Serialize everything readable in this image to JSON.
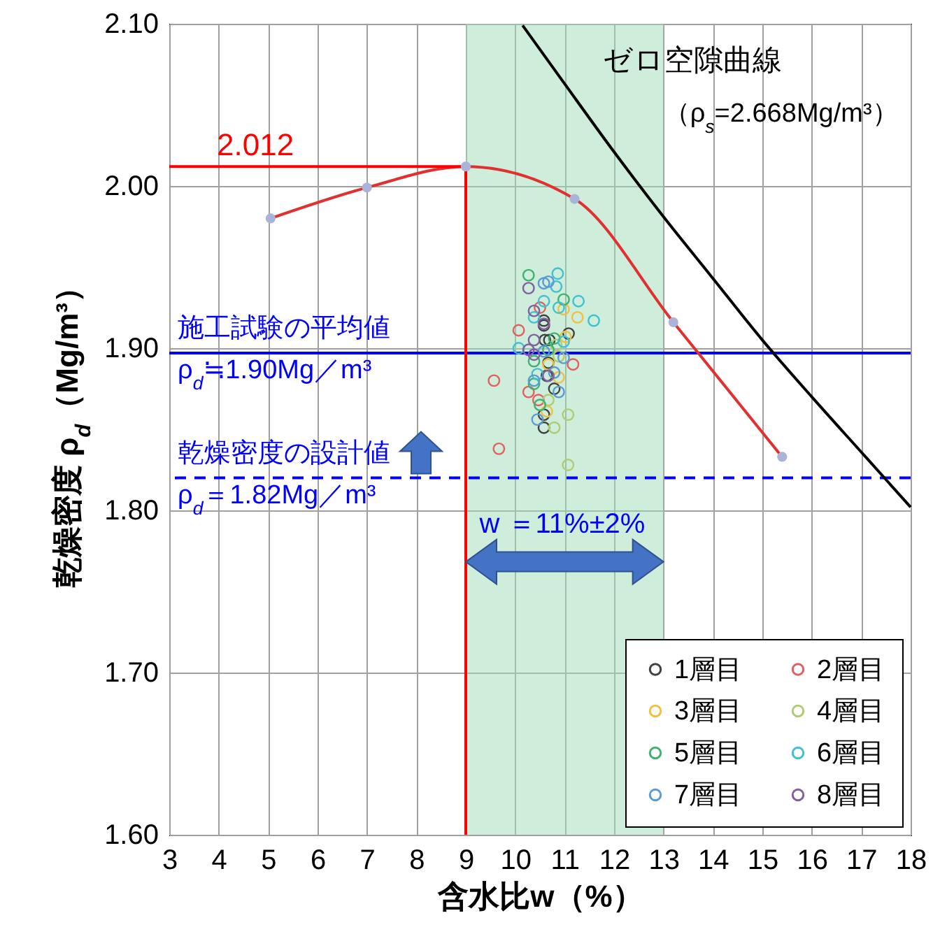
{
  "chart_data": {
    "type": "scatter",
    "xlabel": "含水比w（%）",
    "ylabel": "乾燥密度 ρ$_{d}$（Mg/m³）",
    "xlim": [
      3,
      18
    ],
    "xticks": [
      3,
      4,
      5,
      6,
      7,
      8,
      9,
      10,
      11,
      12,
      13,
      14,
      15,
      16,
      17,
      18
    ],
    "ylim": [
      1.6,
      2.1
    ],
    "yticks": [
      {
        "value": 1.6,
        "label": "1.60"
      },
      {
        "value": 1.7,
        "label": "1.70"
      },
      {
        "value": 1.8,
        "label": "1.80"
      },
      {
        "value": 1.9,
        "label": "1.90"
      },
      {
        "value": 2.0,
        "label": "2.00"
      },
      {
        "value": 2.1,
        "label": "2.10"
      }
    ],
    "grid": true,
    "legend": "bottom right",
    "marker": "circle",
    "bands": [
      {
        "axis": "x",
        "from": 9,
        "to": 13,
        "color": "#9fdcb8"
      }
    ],
    "ref_lines": [
      {
        "axis": "y",
        "value": 1.897,
        "label": "施工試験の平均値\nρ$_{d}$≒1.90Mg／m³",
        "color": "#0000ff",
        "line_style": "solid"
      },
      {
        "axis": "y",
        "value": 1.82,
        "label": "乾燥密度の設計値\nρ$_{d}$＝1.82Mg／m³",
        "color": "#0000ff",
        "line_style": "dashed"
      }
    ],
    "annotations": [
      {
        "text": "2.012",
        "x": 3,
        "y": 2.012
      },
      "ゼロ空隙曲線",
      {
        "text": "（ρ$_{s}$=2.668Mg/m³）",
        "x": 13.0,
        "y": 2.045
      },
      "w ＝11%±2%"
    ],
    "series": [
      {
        "type": "line",
        "marker": "none",
        "color": "#e03030",
        "x": [
          5.05,
          7.0,
          9.0,
          11.2,
          13.2,
          15.4
        ],
        "values": [
          1.98,
          1.999,
          2.012,
          1.992,
          1.916,
          1.833
        ]
      },
      {
        "type": "line",
        "marker": "none",
        "color": "#ff0000",
        "x": [
          3,
          9,
          9
        ],
        "values": [
          2.012,
          2.012,
          1.6
        ]
      },
      {
        "type": "line",
        "marker": "none",
        "color": "#000000",
        "x": [
          10.15,
          11,
          12,
          13,
          14,
          15,
          16,
          17,
          18
        ],
        "values": [
          2.099,
          2.063,
          2.021,
          1.981,
          1.943,
          1.905,
          1.87,
          1.836,
          1.802
        ]
      },
      {
        "type": "scatter",
        "color": "#a9b4d8",
        "x": [
          5.05,
          7.0,
          9.0,
          11.2,
          13.2,
          15.4
        ],
        "values": [
          1.98,
          1.999,
          2.012,
          1.992,
          1.916,
          1.833
        ]
      },
      {
        "name": "1層目",
        "color": "#404040",
        "x": [
          10.58,
          10.58,
          10.6,
          10.67,
          10.64,
          10.79,
          10.58,
          10.58,
          11.08,
          10.69
        ],
        "values": [
          1.917,
          1.914,
          1.905,
          1.891,
          1.883,
          1.875,
          1.859,
          1.851,
          1.909,
          1.905
        ]
      },
      {
        "name": "2層目",
        "color": "#e06060",
        "x": [
          10.07,
          9.57,
          9.67,
          11.17,
          10.27,
          10.47,
          10.5
        ],
        "values": [
          1.911,
          1.88,
          1.838,
          1.89,
          1.873,
          1.868,
          1.925
        ]
      },
      {
        "name": "3層目",
        "color": "#f0c040",
        "x": [
          11.26,
          10.98,
          10.67,
          10.88,
          10.64,
          11.02
        ],
        "values": [
          1.919,
          1.924,
          1.89,
          1.882,
          1.861,
          1.907
        ]
      },
      {
        "name": "4層目",
        "color": "#b0cc70",
        "x": [
          11.07,
          11.07,
          10.79,
          10.67,
          10.88,
          10.83
        ],
        "values": [
          1.859,
          1.828,
          1.851,
          1.868,
          1.895,
          1.902
        ]
      },
      {
        "name": "5層目",
        "color": "#3cb371",
        "x": [
          10.27,
          10.98,
          10.79,
          10.38,
          10.5,
          10.38,
          10.67
        ],
        "values": [
          1.945,
          1.93,
          1.906,
          1.892,
          1.865,
          1.878,
          1.899
        ]
      },
      {
        "name": "6層目",
        "color": "#40c0d0",
        "x": [
          10.86,
          10.83,
          10.58,
          10.88,
          11.28,
          11.59,
          10.07,
          10.45,
          10.98,
          10.38
        ],
        "values": [
          1.946,
          1.938,
          1.929,
          1.925,
          1.929,
          1.917,
          1.9,
          1.884,
          1.904,
          1.919
        ]
      },
      {
        "name": "7層目",
        "color": "#5b9bd5",
        "x": [
          10.58,
          10.67,
          10.79,
          10.88,
          10.45,
          10.38,
          10.58,
          10.98
        ],
        "values": [
          1.94,
          1.941,
          1.885,
          1.873,
          1.856,
          1.88,
          1.898,
          1.894
        ]
      },
      {
        "name": "8層目",
        "color": "#8060a0",
        "x": [
          10.27,
          10.38,
          10.38,
          10.27,
          10.67,
          10.58,
          10.38
        ],
        "values": [
          1.937,
          1.923,
          1.905,
          1.899,
          1.883,
          1.915,
          1.896
        ]
      }
    ]
  }
}
